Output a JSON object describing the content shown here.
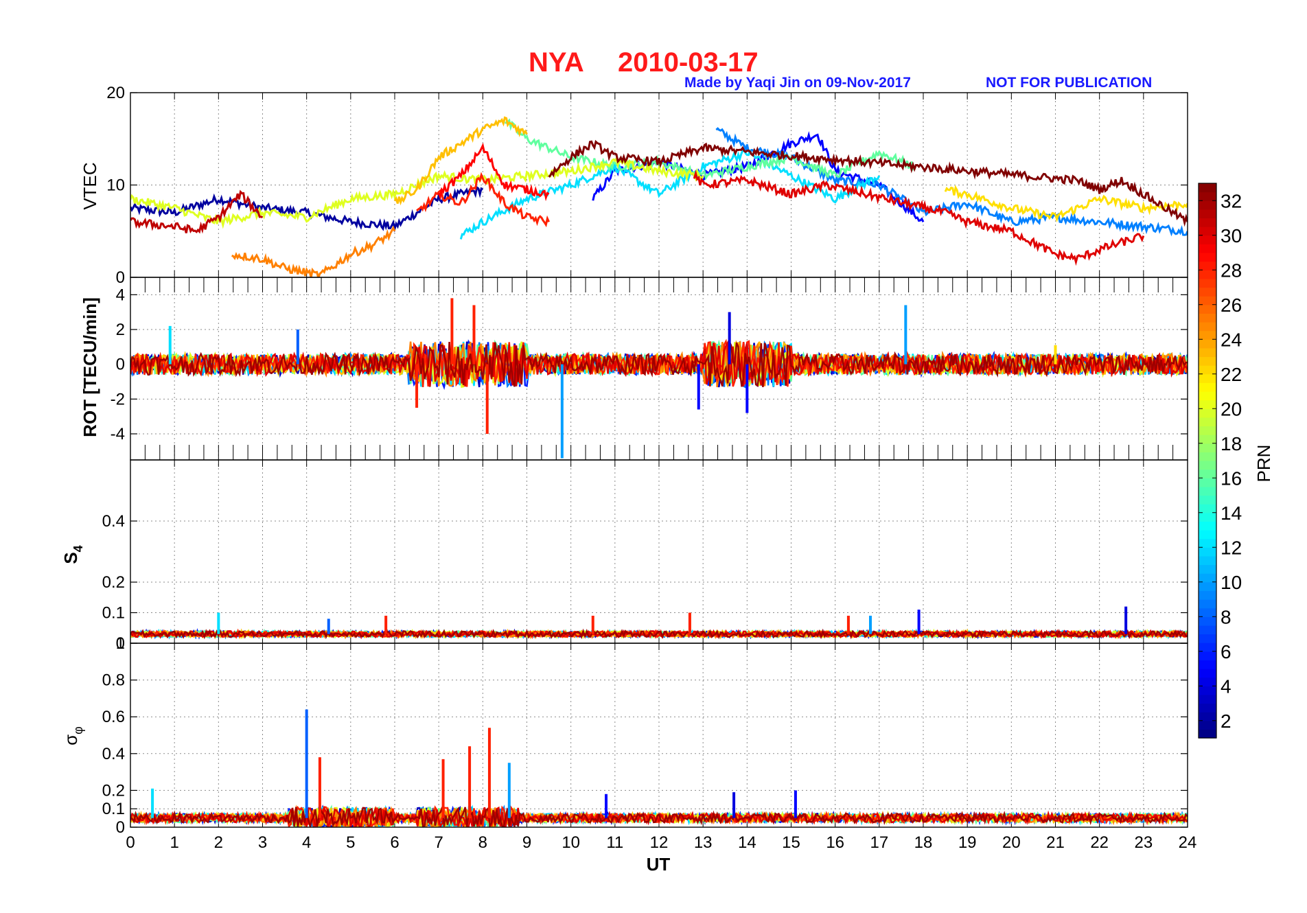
{
  "title": {
    "station": "NYA",
    "date": "2010-03-17",
    "credit": "Made by Yaqi Jin on 09-Nov-2017",
    "notice": "NOT FOR PUBLICATION"
  },
  "colorbar": {
    "label": "PRN",
    "range": [
      1,
      33
    ],
    "ticks": [
      "2",
      "4",
      "6",
      "8",
      "10",
      "12",
      "14",
      "16",
      "18",
      "20",
      "22",
      "24",
      "26",
      "28",
      "30",
      "32"
    ],
    "colormap": "jet"
  },
  "colors": {
    "title": "#ff1a1a",
    "credit": "#1a1aff",
    "grid": "#808080"
  },
  "chart_data": [
    {
      "type": "line",
      "panel": "VTEC",
      "ylabel": "VTEC",
      "ylim": [
        0,
        20
      ],
      "yticks": [
        "0",
        "10",
        "20"
      ],
      "xlim": [
        0,
        24
      ],
      "grid": true,
      "series": [
        {
          "prn": 2,
          "x": [
            0,
            1,
            2,
            3,
            4,
            5,
            6,
            7,
            8
          ],
          "y": [
            7.5,
            7.0,
            8.5,
            7.5,
            7.0,
            6.0,
            5.5,
            8.5,
            9.5
          ]
        },
        {
          "prn": 5,
          "x": [
            10.5,
            11,
            12,
            13,
            14,
            15,
            15.6,
            16,
            17,
            18
          ],
          "y": [
            8.5,
            11.5,
            12.5,
            11.0,
            12.0,
            14.5,
            15.5,
            11.5,
            10.0,
            6.0
          ]
        },
        {
          "prn": 9,
          "x": [
            13.3,
            14,
            15,
            16,
            17,
            18,
            19,
            20,
            21,
            22,
            23,
            24
          ],
          "y": [
            16.0,
            14.0,
            13.0,
            10.5,
            10.0,
            7.0,
            8.0,
            6.0,
            6.5,
            6.0,
            5.5,
            5.0
          ]
        },
        {
          "prn": 12,
          "x": [
            7.5,
            8,
            9,
            10,
            11,
            12,
            13,
            14,
            15,
            16,
            17
          ],
          "y": [
            4.5,
            6.0,
            8.5,
            10.0,
            12.0,
            9.0,
            12.0,
            13.5,
            11.0,
            8.5,
            11.0
          ]
        },
        {
          "prn": 16,
          "x": [
            8.5,
            9,
            10,
            11,
            12,
            13,
            14,
            15,
            16,
            17,
            17.8
          ],
          "y": [
            17.0,
            15.0,
            13.0,
            12.0,
            12.5,
            11.0,
            12.0,
            13.0,
            11.0,
            13.5,
            12.0
          ]
        },
        {
          "prn": 20,
          "x": [
            0,
            1,
            2,
            3,
            4,
            5,
            6,
            7,
            8,
            9,
            10,
            11,
            12,
            13
          ],
          "y": [
            8.5,
            7.5,
            6.0,
            7.0,
            6.5,
            8.5,
            9.0,
            11.0,
            10.5,
            11.0,
            11.5,
            12.5,
            11.5,
            11.0
          ]
        },
        {
          "prn": 22,
          "x": [
            18.5,
            19,
            20,
            21,
            22,
            23,
            24
          ],
          "y": [
            9.5,
            9.0,
            7.5,
            6.5,
            8.5,
            7.5,
            8.0
          ]
        },
        {
          "prn": 23,
          "x": [
            6,
            6.5,
            7,
            8,
            8.5,
            9
          ],
          "y": [
            8.0,
            9.5,
            13.0,
            16.0,
            17.0,
            15.5
          ]
        },
        {
          "prn": 25,
          "x": [
            2.3,
            3,
            3.5,
            4,
            4.3,
            5,
            5.5,
            6
          ],
          "y": [
            2.5,
            2.0,
            1.0,
            0.5,
            0.2,
            2.5,
            3.5,
            5.0
          ]
        },
        {
          "prn": 28,
          "x": [
            6.5,
            7,
            7.5,
            8,
            8.5,
            9,
            9.5
          ],
          "y": [
            7.0,
            9.0,
            8.0,
            11.0,
            8.0,
            6.5,
            6.0
          ]
        },
        {
          "prn": 29,
          "x": [
            7,
            7.5,
            8,
            8.5,
            9,
            9.5
          ],
          "y": [
            9.0,
            11.0,
            14.0,
            10.0,
            9.5,
            9.0
          ]
        },
        {
          "prn": 30,
          "x": [
            12.8,
            13,
            14,
            15,
            15.8,
            18.5,
            19,
            20,
            21,
            21.5,
            22,
            23
          ],
          "y": [
            11.0,
            10.0,
            10.5,
            9.0,
            10.0,
            7.0,
            6.0,
            5.0,
            2.5,
            2.0,
            3.0,
            4.5
          ]
        },
        {
          "prn": 31,
          "x": [
            0,
            1,
            1.5,
            2,
            2.5,
            3
          ],
          "y": [
            6.0,
            5.5,
            5.0,
            6.5,
            9.0,
            6.5
          ]
        },
        {
          "prn": 33,
          "x": [
            9.5,
            10,
            10.5,
            11,
            12,
            13,
            21.5,
            22,
            22.5,
            23,
            24
          ],
          "y": [
            11.0,
            13.0,
            14.5,
            13.0,
            12.5,
            14.0,
            10.5,
            9.5,
            10.5,
            9.0,
            6.0
          ]
        }
      ]
    },
    {
      "type": "line",
      "panel": "ROT",
      "ylabel": "ROT [TECU/min]",
      "ylim": [
        -5.5,
        5
      ],
      "yticks": [
        "-4",
        "-2",
        "0",
        "2",
        "4"
      ],
      "xlim": [
        0,
        24
      ],
      "grid": true,
      "series": [
        {
          "name": "peaks",
          "x": [
            0.9,
            3.8,
            6.5,
            7.3,
            7.8,
            8.1,
            9.8,
            12.9,
            13.6,
            14.0,
            17.6,
            21.0
          ],
          "y": [
            2.2,
            2.0,
            -2.5,
            3.8,
            3.4,
            -4.0,
            -5.4,
            -2.6,
            3.0,
            -2.8,
            3.4,
            1.1
          ]
        }
      ]
    },
    {
      "type": "line",
      "panel": "S4",
      "ylabel": "S4",
      "ylim": [
        0,
        0.6
      ],
      "yticks": [
        "0",
        "0.1",
        "0.2",
        "0.4"
      ],
      "xlim": [
        0,
        24
      ],
      "grid": true,
      "series": [
        {
          "name": "peaks",
          "x": [
            2.0,
            4.5,
            5.8,
            10.5,
            12.7,
            16.3,
            16.8,
            17.9,
            22.6
          ],
          "y": [
            0.1,
            0.08,
            0.09,
            0.09,
            0.1,
            0.09,
            0.09,
            0.11,
            0.12
          ]
        }
      ]
    },
    {
      "type": "line",
      "panel": "sigma_phi",
      "ylabel": "σφ",
      "ylim": [
        0,
        1
      ],
      "yticks": [
        "0",
        "0.1",
        "0.2",
        "0.4",
        "0.6",
        "0.8",
        "1"
      ],
      "xlim": [
        0,
        24
      ],
      "xlabel": "UT",
      "xticks": [
        "0",
        "1",
        "2",
        "3",
        "4",
        "5",
        "6",
        "7",
        "8",
        "9",
        "10",
        "11",
        "12",
        "13",
        "14",
        "15",
        "16",
        "17",
        "18",
        "19",
        "20",
        "21",
        "22",
        "23",
        "24"
      ],
      "grid": true,
      "series": [
        {
          "name": "peaks",
          "x": [
            0.5,
            4.0,
            4.3,
            7.1,
            7.7,
            8.15,
            8.6,
            10.8,
            13.7,
            15.1
          ],
          "y": [
            0.21,
            0.64,
            0.38,
            0.37,
            0.44,
            0.54,
            0.35,
            0.18,
            0.19,
            0.2
          ]
        }
      ]
    }
  ]
}
